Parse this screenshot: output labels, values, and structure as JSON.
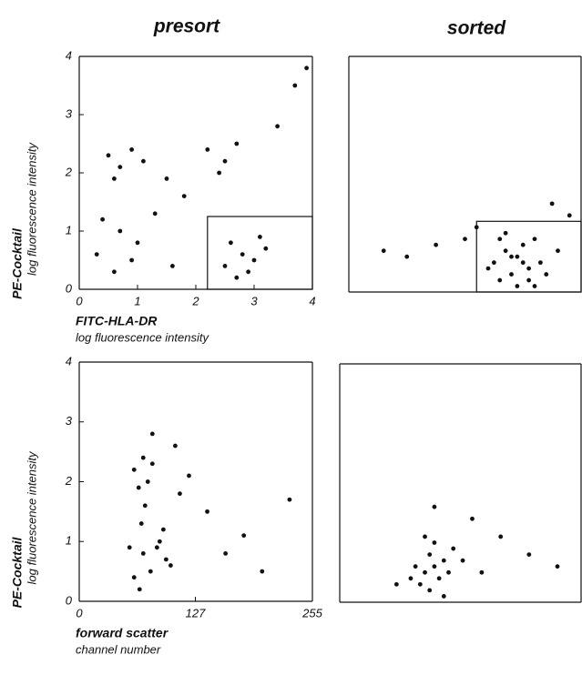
{
  "chart_data": [
    {
      "type": "scatter",
      "title": "presort",
      "xlabel": "FITC-HLA-DR",
      "xlabel_unit": "log fluorescence intensity",
      "ylabel": "PE-Cocktail",
      "ylabel_unit": "log fluorescence intensity",
      "xlim": [
        0,
        4
      ],
      "ylim": [
        0,
        4
      ],
      "xticks": [
        0,
        1,
        2,
        3,
        4
      ],
      "yticks": [
        0,
        1,
        2,
        3,
        4
      ],
      "gate": {
        "x": [
          2.2,
          4
        ],
        "y": [
          0,
          1.25
        ]
      },
      "color": "#111111",
      "x": [
        0.5,
        0.7,
        0.9,
        1.1,
        0.6,
        2.2,
        2.5,
        2.7,
        2.4,
        0.4,
        0.7,
        1.0,
        1.3,
        0.9,
        0.6,
        2.6,
        2.8,
        3.0,
        3.2,
        2.9,
        2.5,
        3.1,
        2.7,
        1.8,
        1.6,
        3.4,
        3.7,
        3.9,
        0.3,
        1.5
      ],
      "y": [
        2.3,
        2.1,
        2.4,
        2.2,
        1.9,
        2.4,
        2.2,
        2.5,
        2.0,
        1.2,
        1.0,
        0.8,
        1.3,
        0.5,
        0.3,
        0.8,
        0.6,
        0.5,
        0.7,
        0.3,
        0.4,
        0.9,
        0.2,
        1.6,
        0.4,
        2.8,
        3.5,
        3.8,
        0.6,
        1.9
      ]
    },
    {
      "type": "scatter",
      "title": "sorted",
      "xlim": [
        0,
        4
      ],
      "ylim": [
        0,
        4
      ],
      "gate": {
        "x": [
          2.2,
          4
        ],
        "y": [
          0,
          1.2
        ]
      },
      "color": "#111111",
      "x": [
        2.5,
        2.7,
        2.9,
        3.1,
        3.3,
        2.6,
        2.8,
        3.0,
        3.2,
        2.7,
        2.9,
        3.1,
        2.6,
        3.4,
        3.6,
        2.4,
        3.0,
        2.8,
        3.2,
        0.6,
        1.0,
        1.5,
        2.0,
        3.8,
        3.5,
        2.2
      ],
      "y": [
        0.5,
        0.7,
        0.6,
        0.4,
        0.5,
        0.2,
        0.3,
        0.8,
        0.9,
        1.0,
        0.1,
        0.2,
        0.9,
        0.3,
        0.7,
        0.4,
        0.5,
        0.6,
        0.1,
        0.7,
        0.6,
        0.8,
        0.9,
        1.3,
        1.5,
        1.1
      ]
    },
    {
      "type": "scatter",
      "xlabel": "forward scatter",
      "xlabel_unit": "channel number",
      "ylabel": "PE-Cocktail",
      "ylabel_unit": "log fluorescence intensity",
      "xlim": [
        0,
        255
      ],
      "ylim": [
        0,
        4
      ],
      "xticks": [
        0,
        127,
        255
      ],
      "yticks": [
        0,
        1,
        2,
        3,
        4
      ],
      "color": "#111111",
      "x": [
        60,
        70,
        75,
        80,
        65,
        72,
        68,
        85,
        95,
        100,
        70,
        78,
        88,
        60,
        55,
        92,
        110,
        120,
        140,
        160,
        180,
        200,
        230,
        105,
        80,
        66
      ],
      "y": [
        2.2,
        2.4,
        2.0,
        2.3,
        1.9,
        1.6,
        1.3,
        0.9,
        0.7,
        0.6,
        0.8,
        0.5,
        1.0,
        0.4,
        0.9,
        1.2,
        1.8,
        2.1,
        1.5,
        0.8,
        1.1,
        0.5,
        1.7,
        2.6,
        2.8,
        0.2
      ]
    },
    {
      "type": "scatter",
      "xlim": [
        0,
        255
      ],
      "ylim": [
        0,
        4
      ],
      "color": "#111111",
      "x": [
        80,
        90,
        95,
        100,
        105,
        110,
        85,
        95,
        100,
        115,
        120,
        90,
        75,
        130,
        150,
        170,
        200,
        230,
        60,
        140,
        100,
        110
      ],
      "y": [
        0.6,
        0.5,
        0.8,
        0.6,
        0.4,
        0.7,
        0.3,
        0.2,
        1.0,
        0.5,
        0.9,
        1.1,
        0.4,
        0.7,
        0.5,
        1.1,
        0.8,
        0.6,
        0.3,
        1.4,
        1.6,
        0.1
      ]
    }
  ]
}
